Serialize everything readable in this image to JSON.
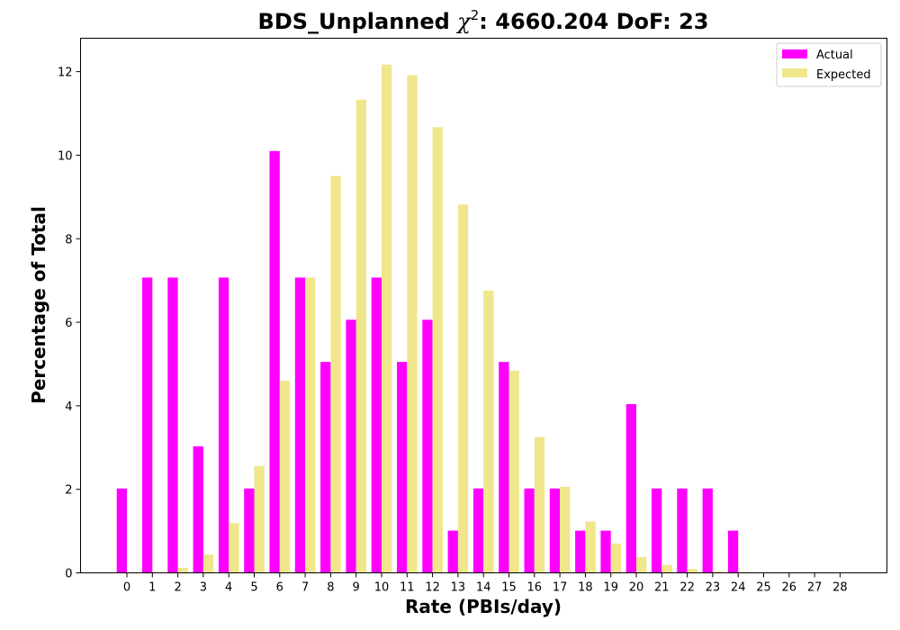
{
  "chart_data": {
    "type": "bar",
    "title": "BDS_Unplanned χ²: 4660.204 DoF: 23",
    "title_parts": {
      "prefix": "BDS_Unplanned ",
      "chi": "χ",
      "sup": "2",
      "suffix": ": 4660.204 DoF: 23"
    },
    "xlabel": "Rate (PBIs/day)",
    "ylabel": "Percentage of Total",
    "categories": [
      "0",
      "1",
      "2",
      "3",
      "4",
      "5",
      "6",
      "7",
      "8",
      "9",
      "10",
      "11",
      "12",
      "13",
      "14",
      "15",
      "16",
      "17",
      "18",
      "19",
      "20",
      "21",
      "22",
      "23",
      "24",
      "25",
      "26",
      "27",
      "28"
    ],
    "ylim": [
      0,
      12.8
    ],
    "yticks": [
      0,
      2,
      4,
      6,
      8,
      10,
      12
    ],
    "legend_position": "top-right",
    "grid": false,
    "series": [
      {
        "name": "Actual",
        "color": "#ff00ff",
        "values": [
          2.02,
          7.07,
          7.07,
          3.03,
          7.07,
          2.02,
          10.1,
          7.07,
          5.05,
          6.06,
          7.07,
          5.05,
          6.06,
          1.01,
          2.02,
          5.05,
          2.02,
          2.02,
          1.01,
          1.01,
          4.04,
          2.02,
          2.02,
          2.02,
          1.01,
          0,
          0,
          0,
          0
        ]
      },
      {
        "name": "Expected",
        "color": "#f0e68c",
        "values": [
          0.0,
          0.02,
          0.12,
          0.44,
          1.19,
          2.56,
          4.6,
          7.07,
          9.5,
          11.33,
          12.17,
          11.92,
          10.67,
          8.82,
          6.76,
          4.84,
          3.25,
          2.06,
          1.23,
          0.7,
          0.38,
          0.19,
          0.09,
          0.04,
          0.02,
          0.01,
          0.0,
          0.0,
          0.0
        ]
      }
    ]
  }
}
